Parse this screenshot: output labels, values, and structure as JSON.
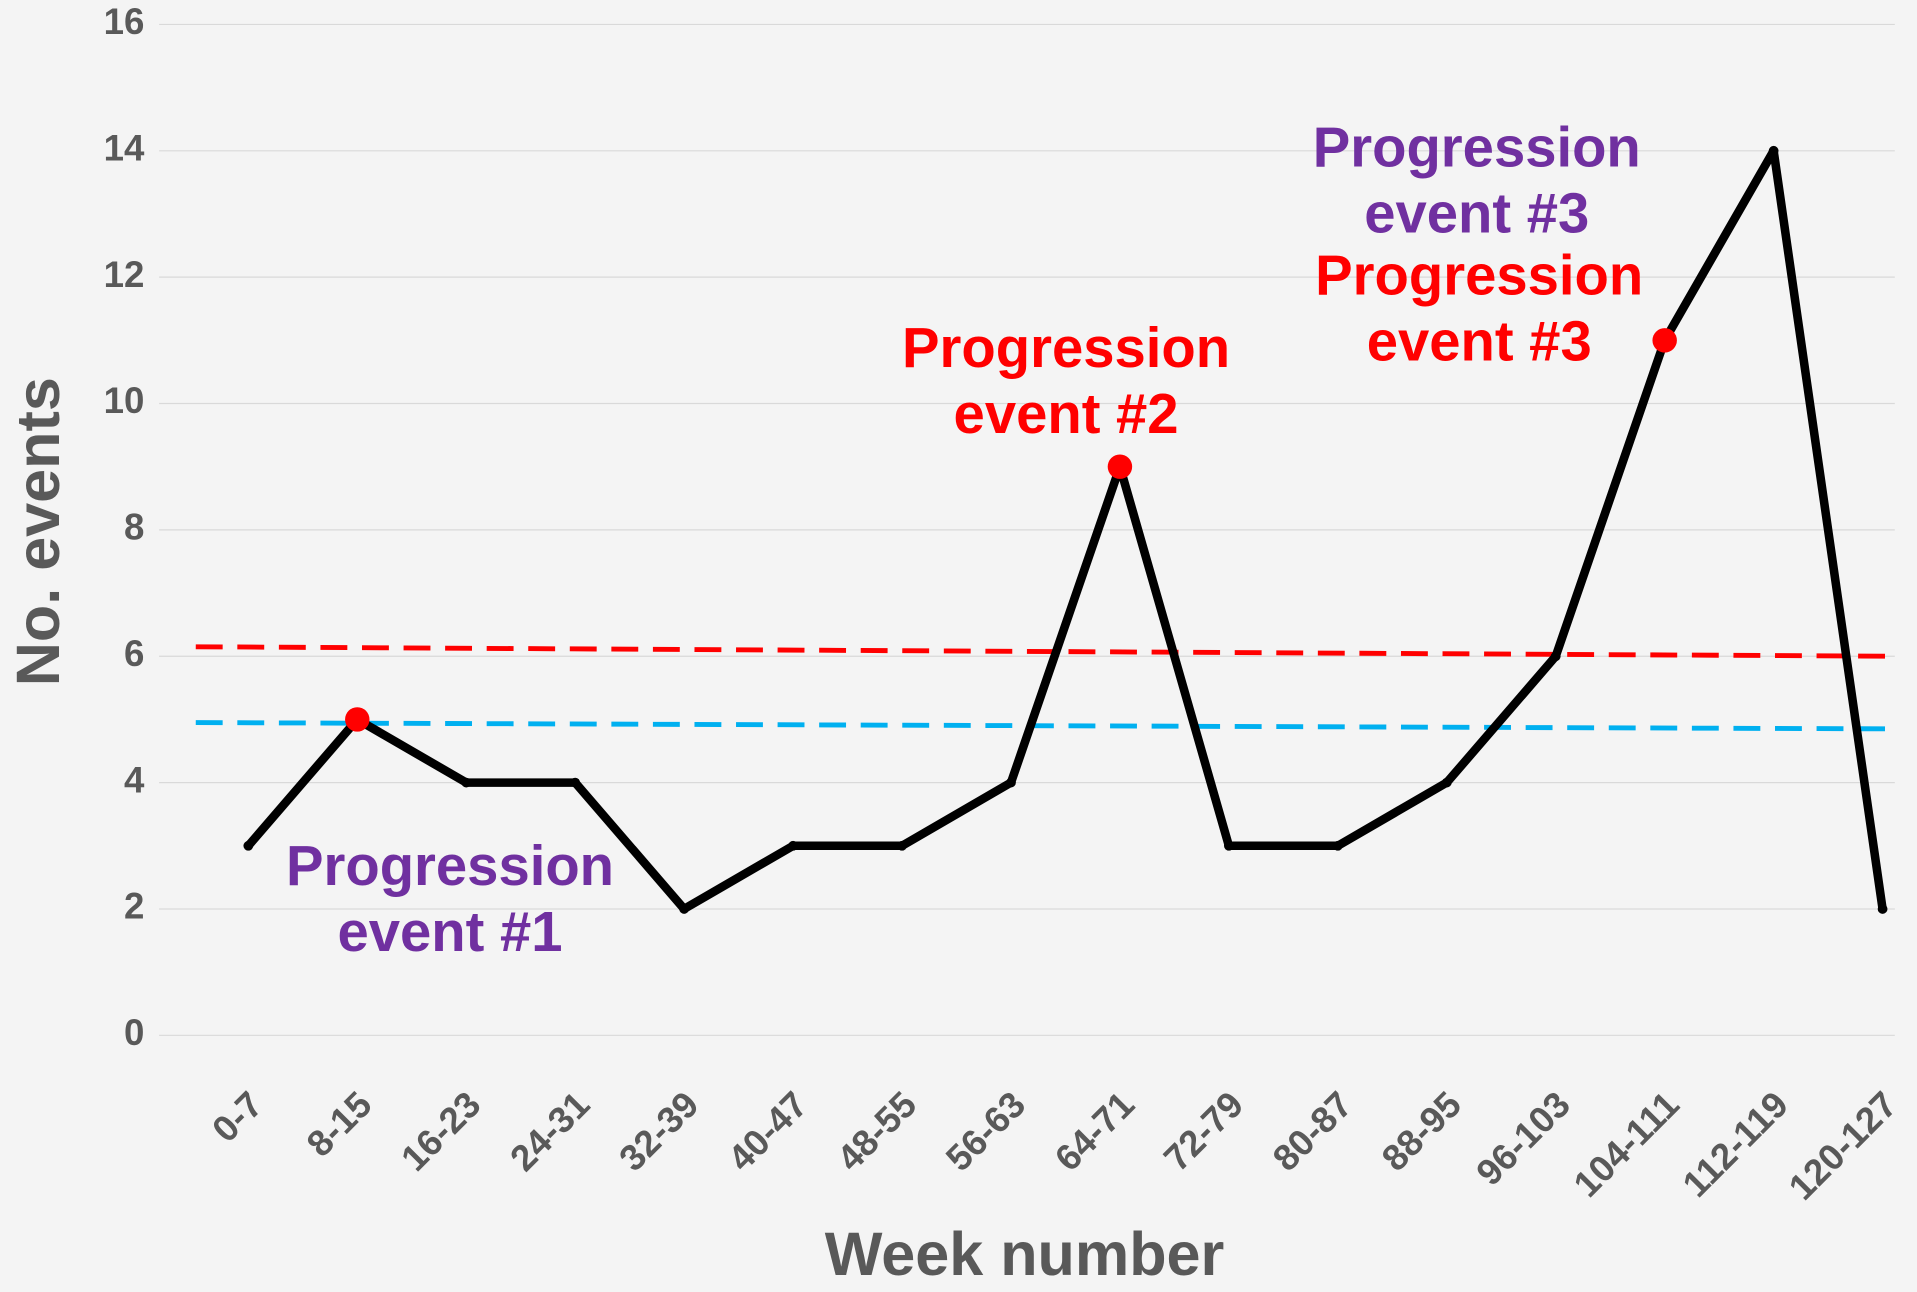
{
  "chart_data": {
    "type": "line",
    "x_label": "Week number",
    "y_label": "No. events",
    "categories": [
      "0-7",
      "8-15",
      "16-23",
      "24-31",
      "32-39",
      "40-47",
      "48-55",
      "56-63",
      "64-71",
      "72-79",
      "80-87",
      "88-95",
      "96-103",
      "104-111",
      "112-119",
      "120-127"
    ],
    "series": [
      {
        "color": "#000000",
        "values": [
          3,
          5,
          4,
          4,
          2,
          3,
          3,
          4,
          9,
          3,
          3,
          4,
          6,
          11,
          14,
          2
        ]
      }
    ],
    "ylim": [
      0,
      16
    ],
    "yticks": [
      0,
      2,
      4,
      6,
      8,
      10,
      12,
      14,
      16
    ],
    "grid": true,
    "markers": [
      1,
      8,
      13
    ],
    "marker_color": "#ff0000",
    "reference_lines": [
      {
        "color": "#ff0000",
        "values": [
          6.15,
          6.0
        ]
      },
      {
        "color": "#00b0f0",
        "values": [
          4.95,
          4.85
        ]
      }
    ],
    "annotations": [
      {
        "lines": [
          "Progression",
          "event #1"
        ],
        "color": "#7030a0"
      },
      {
        "lines": [
          "Progression",
          "event #2"
        ],
        "color": "#ff0000"
      },
      {
        "lines": [
          "Progression",
          "event #3"
        ],
        "color": "#7030a0"
      },
      {
        "lines": [
          "Progression",
          "event #3"
        ],
        "color": "#ff0000"
      }
    ]
  }
}
